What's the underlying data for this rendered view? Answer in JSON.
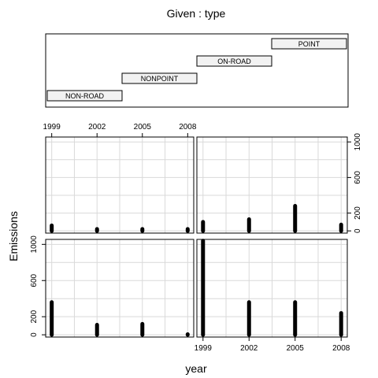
{
  "chart_data": {
    "type": "scatter",
    "title": "Given : type",
    "xlabel": "year",
    "ylabel": "Emissions",
    "given_levels": [
      "NON-ROAD",
      "NONPOINT",
      "ON-ROAD",
      "POINT"
    ],
    "x_ticks": [
      "1999",
      "2002",
      "2005",
      "2008"
    ],
    "y_ticks": [
      "0",
      "200",
      "600",
      "1000"
    ],
    "ylim": [
      0,
      1050
    ],
    "panels": [
      {
        "panel": "top-left",
        "series": [
          {
            "x": 1999,
            "min": 0,
            "max": 60
          },
          {
            "x": 2002,
            "min": 0,
            "max": 20
          },
          {
            "x": 2005,
            "min": 0,
            "max": 20
          },
          {
            "x": 2008,
            "min": 0,
            "max": 20
          }
        ]
      },
      {
        "panel": "top-right",
        "series": [
          {
            "x": 1999,
            "min": 0,
            "max": 100
          },
          {
            "x": 2002,
            "min": 0,
            "max": 130
          },
          {
            "x": 2005,
            "min": 0,
            "max": 280
          },
          {
            "x": 2008,
            "min": 0,
            "max": 70
          }
        ]
      },
      {
        "panel": "bottom-left",
        "series": [
          {
            "x": 1999,
            "min": 0,
            "max": 360
          },
          {
            "x": 2002,
            "min": 0,
            "max": 110
          },
          {
            "x": 2005,
            "min": 0,
            "max": 120
          },
          {
            "x": 2008,
            "min": 0,
            "max": 5
          }
        ]
      },
      {
        "panel": "bottom-right",
        "series": [
          {
            "x": 1999,
            "min": 0,
            "max": 1040
          },
          {
            "x": 2002,
            "min": 0,
            "max": 360
          },
          {
            "x": 2005,
            "min": 0,
            "max": 360
          },
          {
            "x": 2008,
            "min": 0,
            "max": 240
          }
        ]
      }
    ]
  }
}
